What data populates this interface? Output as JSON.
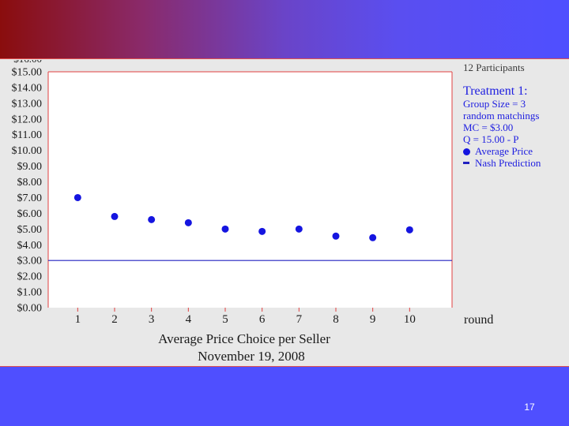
{
  "participants": "12 Participants",
  "legend": {
    "title": "Treatment 1:",
    "lines": [
      "Group Size = 3",
      "random matchings",
      "MC = $3.00",
      "Q = 15.00 - P"
    ],
    "average_label": "Average Price",
    "nash_label": "Nash Prediction"
  },
  "caption": {
    "line1": "Average Price Choice per Seller",
    "line2": "November 19, 2008"
  },
  "slide_number": "17",
  "colors": {
    "points": "#1515e0",
    "nash_line": "#2020c0",
    "frame": "#e04040",
    "text": "#1a1a1a",
    "legend_text": "#2020e0"
  },
  "chart_data": {
    "type": "scatter",
    "xlabel": "round",
    "x": [
      1,
      2,
      3,
      4,
      5,
      6,
      7,
      8,
      9,
      10
    ],
    "ylim": [
      0,
      15
    ],
    "y_ticks": [
      "$0.00",
      "$1.00",
      "$2.00",
      "$3.00",
      "$4.00",
      "$5.00",
      "$6.00",
      "$7.00",
      "$8.00",
      "$9.00",
      "$10.00",
      "$11.00",
      "$12.00",
      "$13.00",
      "$14.00",
      "$15.00"
    ],
    "series": [
      {
        "name": "Average Price",
        "values": [
          7.0,
          5.8,
          5.6,
          5.4,
          5.0,
          4.85,
          5.0,
          4.55,
          4.45,
          4.95
        ]
      },
      {
        "name": "Nash Prediction",
        "values": [
          3,
          3,
          3,
          3,
          3,
          3,
          3,
          3,
          3,
          3
        ]
      }
    ]
  }
}
